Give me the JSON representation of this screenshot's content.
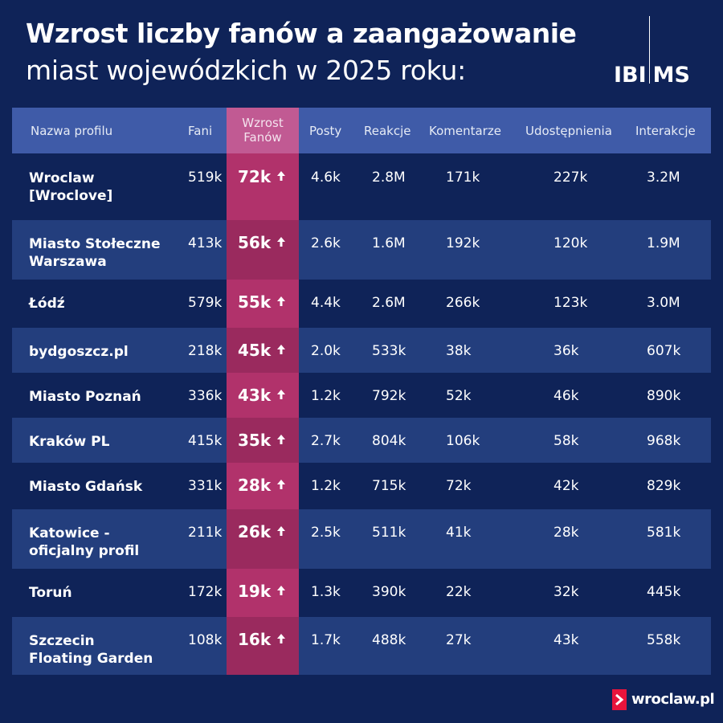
{
  "title_line1": "Wzrost liczby fanów a zaangażowanie",
  "title_line2": "miast wojewódzkich w 2025 roku:",
  "logo": "IBIMS",
  "logo_parts": [
    "IBI",
    "MS"
  ],
  "footer_logo": "wroclaw.pl",
  "colors": {
    "background": "#0f2358",
    "header": "#3f5ba8",
    "row_alt": "#233e7d",
    "highlight": "#b1326b",
    "footer_accent": "#e8143c"
  },
  "headers": {
    "name": "Nazwa profilu",
    "fans": "Fani",
    "growth_line1": "Wzrost",
    "growth_line2": "Fanów",
    "posts": "Posty",
    "reactions": "Reakcje",
    "comments": "Komentarze",
    "shares": "Udostępnienia",
    "interactions": "Interakcje"
  },
  "rows": [
    {
      "name": [
        "Wroclaw",
        "[Wroclove]"
      ],
      "fans": "519k",
      "growth": "72k",
      "posts": "4.6k",
      "reactions": "2.8M",
      "comments": "171k",
      "shares": "227k",
      "interactions": "3.2M"
    },
    {
      "name": [
        "Miasto Stołeczne",
        "Warszawa"
      ],
      "fans": "413k",
      "growth": "56k",
      "posts": "2.6k",
      "reactions": "1.6M",
      "comments": "192k",
      "shares": "120k",
      "interactions": "1.9M"
    },
    {
      "name": [
        "Łódź"
      ],
      "fans": "579k",
      "growth": "55k",
      "posts": "4.4k",
      "reactions": "2.6M",
      "comments": "266k",
      "shares": "123k",
      "interactions": "3.0M"
    },
    {
      "name": [
        "bydgoszcz.pl"
      ],
      "fans": "218k",
      "growth": "45k",
      "posts": "2.0k",
      "reactions": "533k",
      "comments": "38k",
      "shares": "36k",
      "interactions": "607k"
    },
    {
      "name": [
        "Miasto Poznań"
      ],
      "fans": "336k",
      "growth": "43k",
      "posts": "1.2k",
      "reactions": "792k",
      "comments": "52k",
      "shares": "46k",
      "interactions": "890k"
    },
    {
      "name": [
        "Kraków PL"
      ],
      "fans": "415k",
      "growth": "35k",
      "posts": "2.7k",
      "reactions": "804k",
      "comments": "106k",
      "shares": "58k",
      "interactions": "968k"
    },
    {
      "name": [
        "Miasto Gdańsk"
      ],
      "fans": "331k",
      "growth": "28k",
      "posts": "1.2k",
      "reactions": "715k",
      "comments": "72k",
      "shares": "42k",
      "interactions": "829k"
    },
    {
      "name": [
        "Katowice -",
        "oficjalny profil"
      ],
      "fans": "211k",
      "growth": "26k",
      "posts": "2.5k",
      "reactions": "511k",
      "comments": "41k",
      "shares": "28k",
      "interactions": "581k"
    },
    {
      "name": [
        "Toruń"
      ],
      "fans": "172k",
      "growth": "19k",
      "posts": "1.3k",
      "reactions": "390k",
      "comments": "22k",
      "shares": "32k",
      "interactions": "445k"
    },
    {
      "name": [
        "Szczecin",
        "Floating Garden"
      ],
      "fans": "108k",
      "growth": "16k",
      "posts": "1.7k",
      "reactions": "488k",
      "comments": "27k",
      "shares": "43k",
      "interactions": "558k"
    }
  ]
}
